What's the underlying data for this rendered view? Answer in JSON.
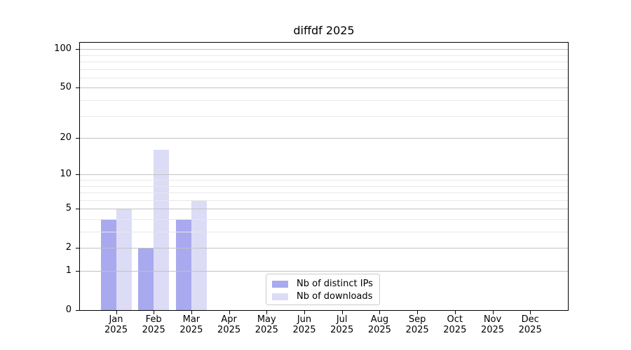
{
  "title": "diffdf 2025",
  "chart_data": {
    "type": "bar",
    "title": "diffdf 2025",
    "categories": [
      "Jan 2025",
      "Feb 2025",
      "Mar 2025",
      "Apr 2025",
      "May 2025",
      "Jun 2025",
      "Jul 2025",
      "Aug 2025",
      "Sep 2025",
      "Oct 2025",
      "Nov 2025",
      "Dec 2025"
    ],
    "series": [
      {
        "name": "Nb of distinct IPs",
        "color": "#a9a9f0",
        "values": [
          4,
          2,
          4,
          0,
          0,
          0,
          0,
          0,
          0,
          0,
          0,
          0
        ]
      },
      {
        "name": "Nb of downloads",
        "color": "#dcdcf7",
        "values": [
          5,
          16,
          6,
          0,
          0,
          0,
          0,
          0,
          0,
          0,
          0,
          0
        ]
      }
    ],
    "y_scale": "log1p",
    "y_major_ticks": [
      0,
      1,
      2,
      5,
      10,
      20,
      50,
      100
    ],
    "y_minor_ticks": [
      3,
      4,
      6,
      7,
      8,
      9,
      30,
      40,
      60,
      70,
      80,
      90
    ],
    "ylim": [
      0,
      112
    ],
    "xlabel": "",
    "ylabel": "",
    "grid": true,
    "grid_above_bars": true,
    "legend_position": "lower center"
  },
  "colors": {
    "grid_major": "#c2c2c2",
    "grid_minor": "#e8e8e8",
    "spine": "#000000",
    "background": "#ffffff",
    "legend_border": "#cccccc",
    "text": "#000000"
  },
  "legend": {
    "items": [
      {
        "label": "Nb of distinct IPs",
        "swatch_color": "#a9a9f0"
      },
      {
        "label": "Nb of downloads",
        "swatch_color": "#dcdcf7"
      }
    ]
  }
}
